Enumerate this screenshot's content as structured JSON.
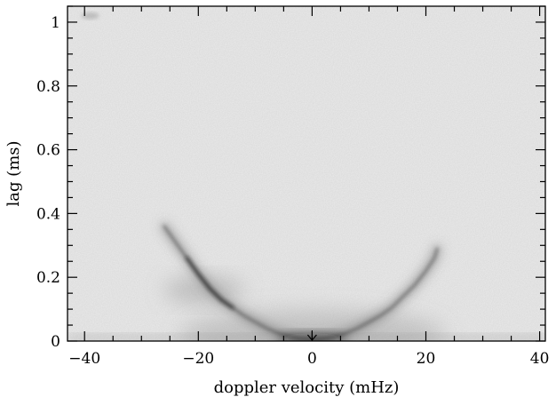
{
  "chart_data": {
    "type": "heatmap",
    "title": "",
    "xlabel": "doppler velocity (mHz)",
    "ylabel": "lag (ms)",
    "xlim": [
      -43,
      41
    ],
    "ylim": [
      0,
      1.05
    ],
    "x_ticks": [
      -40,
      -20,
      0,
      20,
      40
    ],
    "x_tick_labels": [
      "−40",
      "−20",
      "0",
      "20",
      "40"
    ],
    "y_ticks": [
      0,
      0.2,
      0.4,
      0.6,
      0.8,
      1
    ],
    "y_tick_labels": [
      "0",
      "0.2",
      "0.4",
      "0.6",
      "0.8",
      "1"
    ],
    "grid": false,
    "colormap": "gray_reversed",
    "features": {
      "main_arc": {
        "description_points": [
          [
            -26,
            0.36
          ],
          [
            -24,
            0.31
          ],
          [
            -22,
            0.26
          ],
          [
            -20,
            0.21
          ],
          [
            -18,
            0.165
          ],
          [
            -16,
            0.13
          ],
          [
            -14,
            0.105
          ],
          [
            -12,
            0.08
          ],
          [
            -10,
            0.06
          ],
          [
            -8,
            0.04
          ],
          [
            -6,
            0.025
          ],
          [
            -4,
            0.014
          ],
          [
            -2,
            0.007
          ],
          [
            0,
            0.005
          ],
          [
            2,
            0.007
          ],
          [
            4,
            0.014
          ],
          [
            6,
            0.025
          ],
          [
            8,
            0.04
          ],
          [
            10,
            0.06
          ],
          [
            12,
            0.08
          ],
          [
            14,
            0.105
          ],
          [
            16,
            0.14
          ],
          [
            18,
            0.175
          ],
          [
            20,
            0.22
          ],
          [
            21.5,
            0.26
          ],
          [
            22,
            0.29
          ]
        ]
      },
      "marker_arrow_x": 0
    },
    "colors": {
      "background": "#ebebeb",
      "frame": "#000000"
    }
  }
}
